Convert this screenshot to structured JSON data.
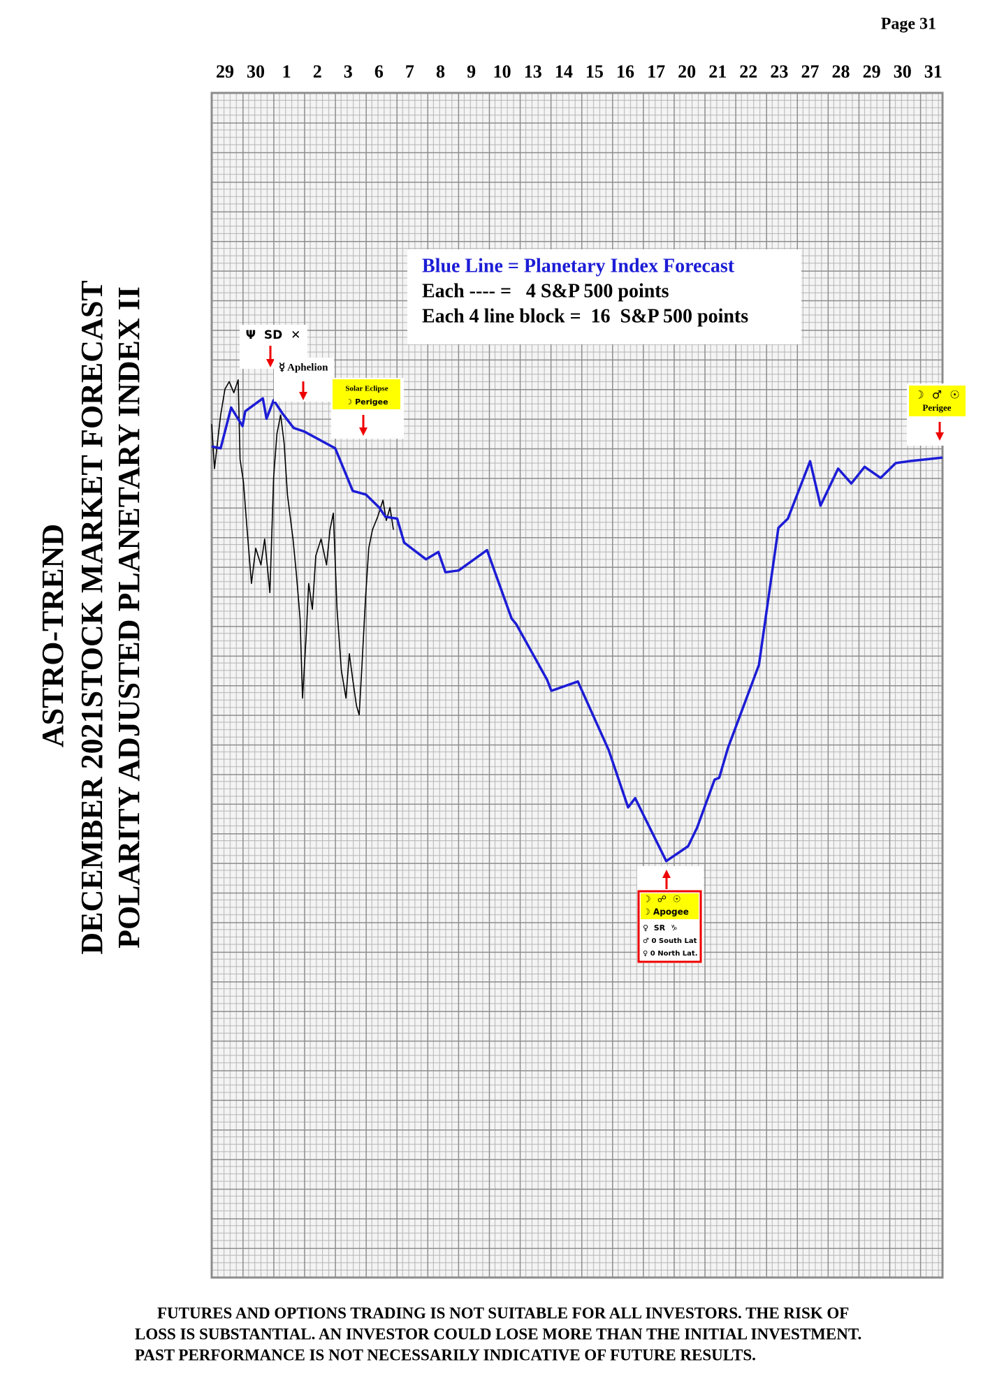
{
  "page_label": "Page  31",
  "chart_data": {
    "type": "line",
    "title_lines": [
      "ASTRO-TREND",
      "DECEMBER 2021STOCK MARKET FORECAST",
      "POLARITY ADJUSTED PLANETARY INDEX II"
    ],
    "xlim": [
      -0.43,
      23.3
    ],
    "ylim": [
      0,
      640
    ],
    "grid": true,
    "xticks": [
      {
        "value": 0,
        "label": "29"
      },
      {
        "value": 1,
        "label": "30"
      },
      {
        "value": 2,
        "label": "1"
      },
      {
        "value": 3,
        "label": "2"
      },
      {
        "value": 4,
        "label": "3"
      },
      {
        "value": 5,
        "label": "6"
      },
      {
        "value": 6,
        "label": "7"
      },
      {
        "value": 7,
        "label": "8"
      },
      {
        "value": 8,
        "label": "9"
      },
      {
        "value": 9,
        "label": "10"
      },
      {
        "value": 10,
        "label": "13"
      },
      {
        "value": 11,
        "label": "14"
      },
      {
        "value": 12,
        "label": "15"
      },
      {
        "value": 13,
        "label": "16"
      },
      {
        "value": 14,
        "label": "17"
      },
      {
        "value": 15,
        "label": "20"
      },
      {
        "value": 16,
        "label": "21"
      },
      {
        "value": 17,
        "label": "22"
      },
      {
        "value": 18,
        "label": "23"
      },
      {
        "value": 19,
        "label": "27"
      },
      {
        "value": 20,
        "label": "28"
      },
      {
        "value": 21,
        "label": "29"
      },
      {
        "value": 22,
        "label": "30"
      },
      {
        "value": 23,
        "label": "31"
      }
    ],
    "series": [
      {
        "color": "#1c1cd6",
        "x": [
          -0.43,
          -0.14,
          0.2,
          0.57,
          0.66,
          1.23,
          1.35,
          1.58,
          1.86,
          2.23,
          2.58,
          3.58,
          4.15,
          4.58,
          5.01,
          5.21,
          5.59,
          5.82,
          6.53,
          6.93,
          7.16,
          7.59,
          8.51,
          9.31,
          9.46,
          10.46,
          10.6,
          11.46,
          12.46,
          13.09,
          13.32,
          14.33,
          15.04,
          15.33,
          15.9,
          16.05,
          16.33,
          17.34,
          17.97,
          18.28,
          19.0,
          19.34,
          19.91,
          20.34,
          20.77,
          21.29,
          21.78,
          22.21,
          23.3
        ],
        "values": [
          449,
          448,
          470,
          460,
          468,
          475,
          464,
          474,
          467,
          459,
          457,
          448,
          425,
          423,
          416,
          411,
          410,
          397,
          388,
          392,
          381,
          382,
          393,
          356,
          353,
          323,
          317,
          322,
          285,
          254,
          259,
          225,
          233,
          243,
          269,
          270,
          286,
          331,
          405,
          410,
          441,
          417,
          437,
          429,
          438,
          432,
          440,
          441,
          443
        ]
      },
      {
        "color": "#000000",
        "x": [
          -0.43,
          -0.34,
          -0.14,
          0,
          0.14,
          0.29,
          0.43,
          0.49,
          0.6,
          0.72,
          0.86,
          1.0,
          1.17,
          1.29,
          1.46,
          1.58,
          1.69,
          1.81,
          1.92,
          2.03,
          2.21,
          2.32,
          2.44,
          2.52,
          2.64,
          2.72,
          2.84,
          2.95,
          3.12,
          3.3,
          3.41,
          3.52,
          3.64,
          3.78,
          3.93,
          4.04,
          4.15,
          4.27,
          4.36,
          4.44,
          4.56,
          4.67,
          4.79,
          4.96,
          5.13,
          5.24,
          5.36,
          5.47
        ],
        "values": [
          461,
          437,
          466,
          480,
          484,
          478,
          485,
          442,
          430,
          404,
          375,
          394,
          385,
          399,
          370,
          432,
          456,
          466,
          451,
          423,
          399,
          380,
          356,
          313,
          347,
          375,
          361,
          390,
          399,
          385,
          404,
          413,
          361,
          328,
          313,
          337,
          323,
          309,
          304,
          328,
          366,
          394,
          404,
          411,
          420,
          409,
          416,
          404
        ]
      }
    ],
    "legend_text": [
      "Blue Line = Planetary Index Forecast",
      "Each ---- =   4 S&P 500 points",
      "Each 4 line block =  16  S&P 500 points"
    ],
    "annotations": [
      {
        "lines": [
          "Ψ  SD  ✕"
        ]
      },
      {
        "lines": [
          "☿ Aphelion"
        ]
      },
      {
        "lines": [
          "Solar Eclipse",
          "☽ Perigee"
        ]
      },
      {
        "lines": [
          "☽  ♂  ☉",
          "Perigee"
        ]
      },
      {
        "lines": [
          "☽  ☍  ☉",
          "☽ Apogee",
          "♀  SR  ♑",
          "♂ 0 South Lat",
          "♀ 0 North Lat."
        ]
      }
    ]
  },
  "disclaimer": [
    "FUTURES AND OPTIONS TRADING IS NOT SUITABLE FOR ALL INVESTORS.  THE RISK OF",
    "LOSS IS SUBSTANTIAL.  AN INVESTOR COULD LOSE MORE THAN THE INITIAL INVESTMENT.",
    "PAST PERFORMANCE IS NOT NECESSARILY INDICATIVE OF FUTURE RESULTS."
  ]
}
